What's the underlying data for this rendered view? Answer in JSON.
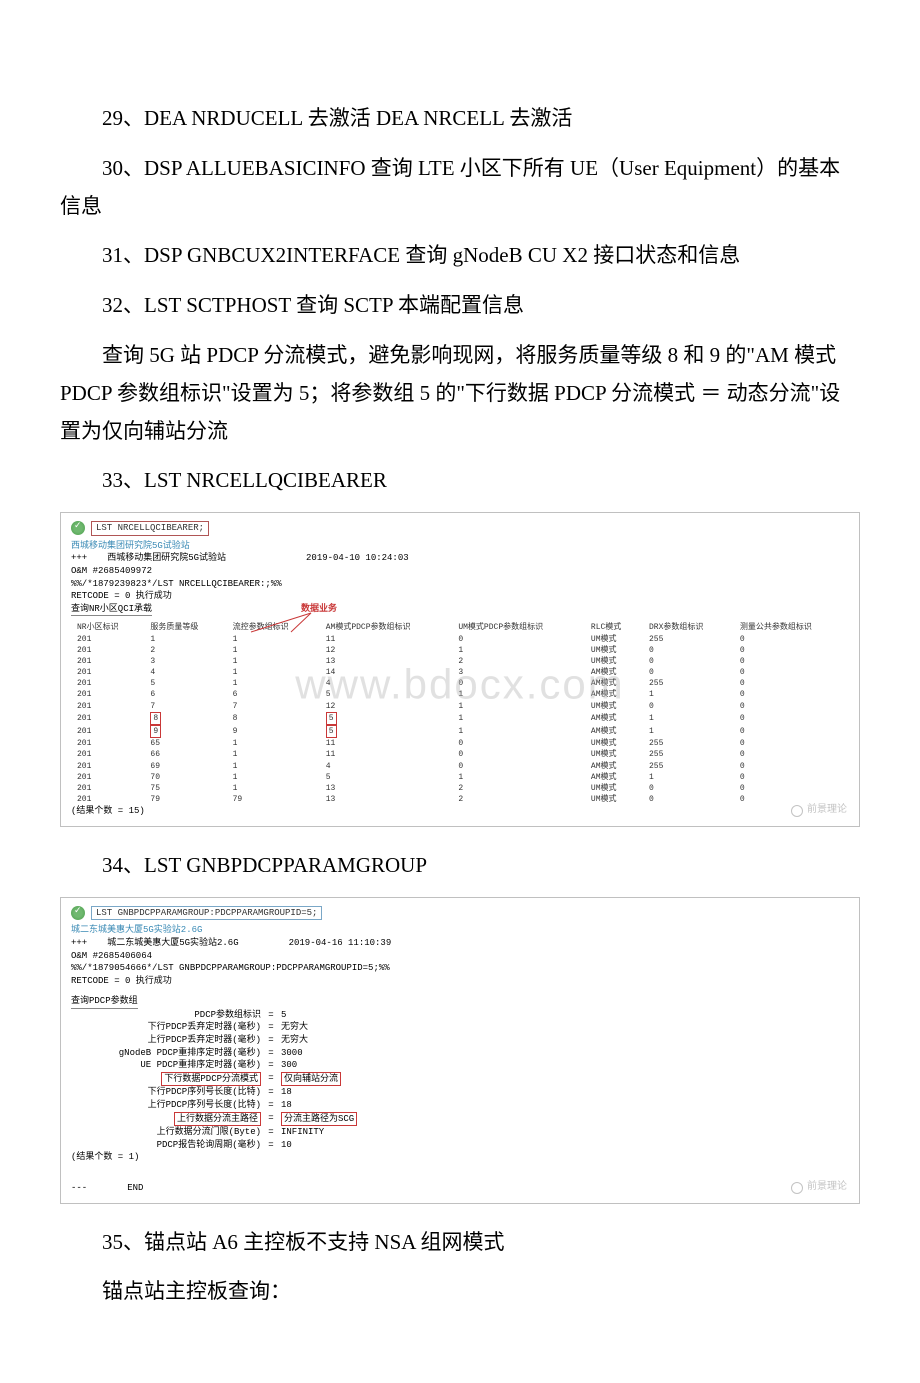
{
  "paragraphs": {
    "p29": "29、DEA  NRDUCELL  去激活      DEA  NRCELL  去激活",
    "p30": "30、DSP ALLUEBASICINFO      查询 LTE 小区下所有 UE（User Equipment）的基本信息",
    "p31": "31、DSP GNBCUX2INTERFACE       查询 gNodeB CU X2 接口状态和信息",
    "p32": "32、LST SCTPHOST 查询 SCTP 本端配置信息",
    "p32b": "查询 5G 站 PDCP 分流模式，避免影响现网，将服务质量等级 8 和 9 的\"AM 模式 PDCP 参数组标识\"设置为 5；将参数组 5 的\"下行数据 PDCP 分流模式 ＝ 动态分流\"设置为仅向辅站分流",
    "p33": "33、LST NRCELLQCIBEARER",
    "p34": "34、LST GNBPDCPPARAMGROUP",
    "p35": "35、锚点站 A6 主控板不支持 NSA 组网模式",
    "p35b": "锚点站主控板查询："
  },
  "terminal1": {
    "cmd": "LST NRCELLQCIBEARER;",
    "station": "西城移动集团研究院5G试验站",
    "plus": "+++",
    "station_line": "西城移动集团研究院5G试验站",
    "timestamp": "2019-04-10 10:24:03",
    "oam": "O&M    #2685409972",
    "cmdline": "%%/*1879239823*/LST NRCELLQCIBEARER:;%%",
    "retcode": "RETCODE = 0  执行成功",
    "section": "查询NR小区QCI承载",
    "biz_label": "数据业务",
    "headers": [
      "NR小区标识",
      "服务质量等级",
      "流控参数组标识",
      "AM模式PDCP参数组标识",
      "UM模式PDCP参数组标识",
      "RLC模式",
      "DRX参数组标识",
      "测量公共参数组标识"
    ],
    "rows": [
      [
        "201",
        "1",
        "1",
        "11",
        "0",
        "UM模式",
        "255",
        "0"
      ],
      [
        "201",
        "2",
        "1",
        "12",
        "1",
        "UM模式",
        "0",
        "0"
      ],
      [
        "201",
        "3",
        "1",
        "13",
        "2",
        "UM模式",
        "0",
        "0"
      ],
      [
        "201",
        "4",
        "1",
        "14",
        "3",
        "AM模式",
        "0",
        "0"
      ],
      [
        "201",
        "5",
        "1",
        "4",
        "0",
        "AM模式",
        "255",
        "0"
      ],
      [
        "201",
        "6",
        "6",
        "5",
        "1",
        "AM模式",
        "1",
        "0"
      ],
      [
        "201",
        "7",
        "7",
        "12",
        "1",
        "UM模式",
        "0",
        "0"
      ],
      [
        "201",
        "8",
        "8",
        "5",
        "1",
        "AM模式",
        "1",
        "0"
      ],
      [
        "201",
        "9",
        "9",
        "5",
        "1",
        "AM模式",
        "1",
        "0"
      ],
      [
        "201",
        "65",
        "1",
        "11",
        "0",
        "UM模式",
        "255",
        "0"
      ],
      [
        "201",
        "66",
        "1",
        "11",
        "0",
        "UM模式",
        "255",
        "0"
      ],
      [
        "201",
        "69",
        "1",
        "4",
        "0",
        "AM模式",
        "255",
        "0"
      ],
      [
        "201",
        "70",
        "1",
        "5",
        "1",
        "AM模式",
        "1",
        "0"
      ],
      [
        "201",
        "75",
        "1",
        "13",
        "2",
        "UM模式",
        "0",
        "0"
      ],
      [
        "201",
        "79",
        "79",
        "13",
        "2",
        "UM模式",
        "0",
        "0"
      ]
    ],
    "result_count": "(结果个数 = 15)",
    "watermark": "www.bdocx.com",
    "wechat": "前景理论"
  },
  "terminal2": {
    "cmd": "LST GNBPDCPPARAMGROUP:PDCPPARAMGROUPID=5;",
    "station": "城二东城美惠大厦5G实验站2.6G",
    "plus": "+++",
    "station_line": "城二东城美惠大厦5G实验站2.6G",
    "timestamp": "2019-04-16 11:10:39",
    "oam": "O&M    #2685406064",
    "cmdline": "%%/*1879054666*/LST GNBPDCPPARAMGROUP:PDCPPARAMGROUPID=5;%%",
    "retcode": "RETCODE = 0  执行成功",
    "section": "查询PDCP参数组",
    "params": [
      {
        "label": "PDCP参数组标识",
        "val": "5"
      },
      {
        "label": "下行PDCP丢弃定时器(毫秒)",
        "val": "无穷大"
      },
      {
        "label": "上行PDCP丢弃定时器(毫秒)",
        "val": "无穷大"
      },
      {
        "label": "gNodeB PDCP重排序定时器(毫秒)",
        "val": "3000"
      },
      {
        "label": "UE PDCP重排序定时器(毫秒)",
        "val": "300"
      },
      {
        "label": "下行数据PDCP分流模式",
        "val": "仅向辅站分流",
        "hl": true
      },
      {
        "label": "下行PDCP序列号长度(比特)",
        "val": "18"
      },
      {
        "label": "上行PDCP序列号长度(比特)",
        "val": "18"
      },
      {
        "label": "上行数据分流主路径",
        "val": "分流主路径为SCG",
        "hl": true
      },
      {
        "label": "上行数据分流门限(Byte)",
        "val": "INFINITY"
      },
      {
        "label": "PDCP报告轮询周期(毫秒)",
        "val": "10"
      }
    ],
    "result_count": "(结果个数 = 1)",
    "end": "END",
    "wechat": "前景理论"
  }
}
